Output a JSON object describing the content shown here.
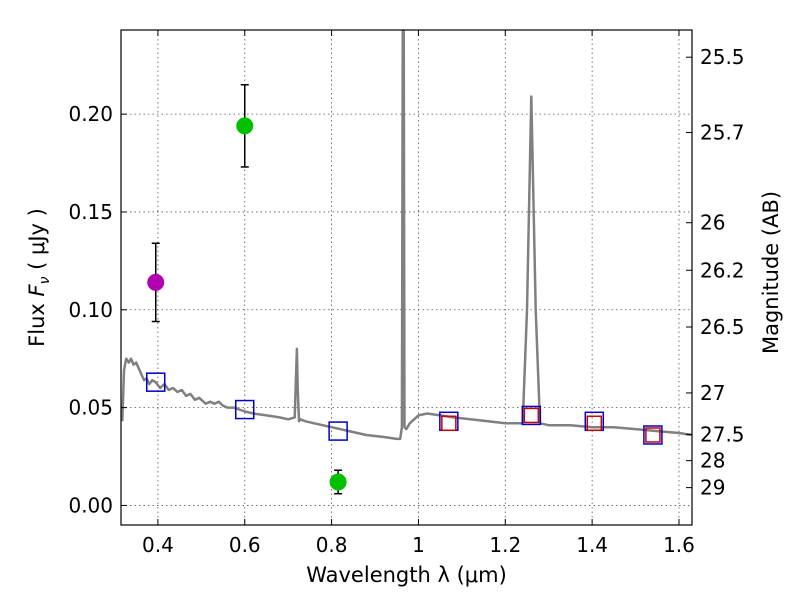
{
  "chart_data": {
    "type": "scatter",
    "xlabel": "Wavelength  λ (μm)",
    "ylabel": "Flux  Fν  ( μJy )",
    "ylabel_parts": {
      "prefix": "Flux  ",
      "symbol": "F",
      "subscript": "ν",
      "suffix": "  ( μJy )"
    },
    "y2label": "Magnitude (AB)",
    "xlim": [
      0.315,
      1.63
    ],
    "ylim": [
      -0.01,
      0.243
    ],
    "grid": true,
    "x_ticks": [
      0.4,
      0.6,
      0.8,
      1.0,
      1.2,
      1.4,
      1.6
    ],
    "x_tick_labels": [
      "0.4",
      "0.6",
      "0.8",
      "1",
      "1.2",
      "1.4",
      "1.6"
    ],
    "y_ticks": [
      0.0,
      0.05,
      0.1,
      0.15,
      0.2
    ],
    "y_tick_labels": [
      "0.00",
      "0.05",
      "0.10",
      "0.15",
      "0.20"
    ],
    "mag_ticks": [
      {
        "label": "25.5",
        "flux": 0.2291
      },
      {
        "label": "25.7",
        "flux": 0.1906
      },
      {
        "label": "26",
        "flux": 0.1445
      },
      {
        "label": "26.2",
        "flux": 0.1202
      },
      {
        "label": "26.5",
        "flux": 0.0912
      },
      {
        "label": "27",
        "flux": 0.0575
      },
      {
        "label": "27.5",
        "flux": 0.0363
      },
      {
        "label": "28",
        "flux": 0.0229
      },
      {
        "label": "29",
        "flux": 0.0091
      }
    ],
    "colors": {
      "model": "#808080",
      "green": "#00c000",
      "magenta": "#b000b0",
      "blue_square": "#0000cc",
      "red_square": "#cc0000",
      "grid": "#555555"
    },
    "model_spectrum": {
      "name": "SED model",
      "x": [
        0.318,
        0.322,
        0.327,
        0.333,
        0.338,
        0.344,
        0.35,
        0.356,
        0.362,
        0.368,
        0.374,
        0.38,
        0.387,
        0.395,
        0.405,
        0.415,
        0.425,
        0.435,
        0.445,
        0.455,
        0.465,
        0.475,
        0.485,
        0.495,
        0.51,
        0.52,
        0.53,
        0.54,
        0.55,
        0.56,
        0.575,
        0.6,
        0.62,
        0.65,
        0.68,
        0.7,
        0.715,
        0.72,
        0.722,
        0.725,
        0.728,
        0.74,
        0.76,
        0.8,
        0.84,
        0.88,
        0.92,
        0.95,
        0.958,
        0.962,
        0.964,
        0.966,
        0.968,
        0.972,
        0.98,
        1.0,
        1.02,
        1.05,
        1.08,
        1.12,
        1.16,
        1.2,
        1.24,
        1.25,
        1.26,
        1.27,
        1.28,
        1.3,
        1.35,
        1.4,
        1.45,
        1.5,
        1.55,
        1.6,
        1.63
      ],
      "y": [
        0.043,
        0.069,
        0.075,
        0.073,
        0.075,
        0.072,
        0.073,
        0.07,
        0.067,
        0.064,
        0.065,
        0.062,
        0.064,
        0.063,
        0.06,
        0.062,
        0.059,
        0.06,
        0.058,
        0.059,
        0.056,
        0.057,
        0.054,
        0.055,
        0.052,
        0.053,
        0.052,
        0.053,
        0.051,
        0.05,
        0.05,
        0.048,
        0.047,
        0.046,
        0.045,
        0.044,
        0.045,
        0.08,
        0.06,
        0.043,
        0.044,
        0.043,
        0.042,
        0.04,
        0.038,
        0.036,
        0.035,
        0.034,
        0.034,
        0.04,
        0.25,
        0.25,
        0.04,
        0.039,
        0.042,
        0.046,
        0.047,
        0.046,
        0.045,
        0.044,
        0.043,
        0.042,
        0.042,
        0.1,
        0.209,
        0.1,
        0.042,
        0.041,
        0.041,
        0.04,
        0.04,
        0.039,
        0.038,
        0.037,
        0.036
      ]
    },
    "series": [
      {
        "name": "green-points",
        "marker": "circle",
        "color": "green",
        "x": [
          0.6,
          0.815
        ],
        "y": [
          0.194,
          0.012
        ],
        "yerr": [
          0.021,
          0.006
        ]
      },
      {
        "name": "magenta-points",
        "marker": "circle",
        "color": "magenta",
        "x": [
          0.395
        ],
        "y": [
          0.114
        ],
        "yerr": [
          0.02
        ]
      },
      {
        "name": "blue-squares",
        "marker": "open-square",
        "color": "blue_square",
        "x": [
          0.395,
          0.6,
          0.815,
          1.07,
          1.26,
          1.405,
          1.54
        ],
        "y": [
          0.063,
          0.049,
          0.038,
          0.043,
          0.046,
          0.043,
          0.036
        ]
      },
      {
        "name": "red-squares",
        "marker": "open-square",
        "color": "red_square",
        "x": [
          1.07,
          1.26,
          1.405,
          1.54
        ],
        "y": [
          0.042,
          0.046,
          0.042,
          0.036
        ]
      }
    ]
  }
}
